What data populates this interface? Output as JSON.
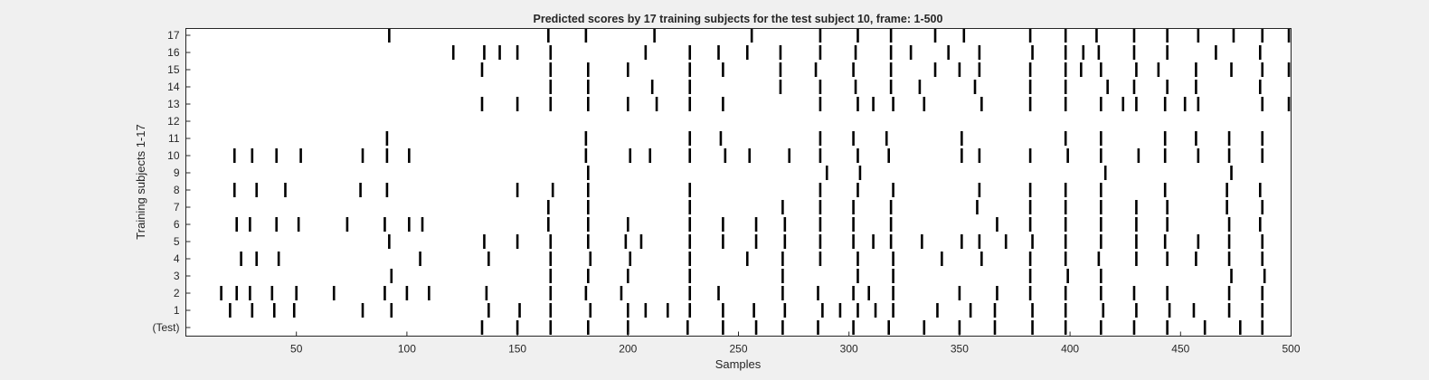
{
  "chart_data": {
    "type": "event-raster",
    "title": "Predicted scores by 17 training subjects for the test subject 10, frame: 1-500",
    "xlabel": "Samples",
    "ylabel": "Training subjects 1-17",
    "xlim": [
      0,
      500
    ],
    "xticks": [
      50,
      100,
      150,
      200,
      250,
      300,
      350,
      400,
      450,
      500
    ],
    "rows": [
      "(Test)",
      "1",
      "2",
      "3",
      "4",
      "5",
      "6",
      "7",
      "8",
      "9",
      "10",
      "11",
      "12",
      "13",
      "14",
      "15",
      "16",
      "17"
    ],
    "grid": false,
    "line_color": "#000000",
    "events": [
      {
        "row": "(Test)",
        "samples": [
          134,
          150,
          165,
          182,
          200,
          227,
          243,
          258,
          270,
          286,
          302,
          318,
          334,
          350,
          366,
          383,
          398,
          414,
          429,
          444,
          461,
          477,
          487
        ]
      },
      {
        "row": "1",
        "samples": [
          20,
          30,
          40,
          49,
          80,
          93,
          137,
          151,
          165,
          183,
          200,
          208,
          218,
          228,
          243,
          257,
          271,
          288,
          296,
          304,
          312,
          320,
          340,
          355,
          366,
          383,
          398,
          415,
          430,
          445,
          456,
          472,
          487
        ]
      },
      {
        "row": "2",
        "samples": [
          16,
          23,
          29,
          39,
          50,
          67,
          90,
          100,
          110,
          136,
          165,
          181,
          197,
          228,
          241,
          270,
          286,
          302,
          309,
          320,
          350,
          367,
          382,
          398,
          414,
          429,
          444,
          472,
          487
        ]
      },
      {
        "row": "3",
        "samples": [
          93,
          165,
          182,
          200,
          228,
          270,
          304,
          320,
          382,
          399,
          414,
          473,
          488
        ]
      },
      {
        "row": "4",
        "samples": [
          25,
          32,
          42,
          106,
          137,
          165,
          183,
          201,
          228,
          254,
          270,
          287,
          304,
          320,
          342,
          360,
          382,
          398,
          413,
          430,
          444,
          457,
          472,
          487
        ]
      },
      {
        "row": "5",
        "samples": [
          92,
          135,
          150,
          165,
          182,
          199,
          206,
          228,
          243,
          258,
          271,
          287,
          302,
          311,
          319,
          333,
          351,
          359,
          371,
          383,
          398,
          414,
          430,
          443,
          458,
          472,
          487
        ]
      },
      {
        "row": "6",
        "samples": [
          23,
          29,
          41,
          51,
          73,
          90,
          101,
          107,
          164,
          182,
          200,
          228,
          243,
          258,
          271,
          287,
          302,
          319,
          367,
          382,
          398,
          414,
          430,
          444,
          472,
          486
        ]
      },
      {
        "row": "7",
        "samples": [
          164,
          182,
          228,
          270,
          287,
          302,
          319,
          358,
          382,
          398,
          414,
          430,
          444,
          471,
          487
        ]
      },
      {
        "row": "8",
        "samples": [
          22,
          32,
          45,
          79,
          91,
          150,
          166,
          182,
          228,
          287,
          304,
          320,
          359,
          382,
          398,
          414,
          443,
          471,
          486
        ]
      },
      {
        "row": "9",
        "samples": [
          182,
          290,
          305,
          416,
          473
        ]
      },
      {
        "row": "10",
        "samples": [
          22,
          30,
          41,
          52,
          80,
          91,
          101,
          181,
          201,
          210,
          228,
          244,
          255,
          273,
          287,
          304,
          318,
          351,
          359,
          382,
          399,
          414,
          431,
          443,
          458,
          472,
          487
        ]
      },
      {
        "row": "11",
        "samples": [
          91,
          181,
          228,
          242,
          287,
          302,
          317,
          351,
          398,
          414,
          443,
          457,
          472,
          487
        ]
      },
      {
        "row": "12",
        "samples": []
      },
      {
        "row": "13",
        "samples": [
          134,
          150,
          165,
          182,
          200,
          213,
          228,
          243,
          287,
          304,
          311,
          320,
          334,
          360,
          382,
          398,
          414,
          424,
          430,
          443,
          452,
          458,
          487,
          499
        ]
      },
      {
        "row": "14",
        "samples": [
          165,
          182,
          211,
          228,
          269,
          287,
          303,
          319,
          332,
          357,
          382,
          398,
          417,
          429,
          444,
          457,
          486
        ]
      },
      {
        "row": "15",
        "samples": [
          134,
          165,
          182,
          200,
          228,
          243,
          269,
          285,
          302,
          319,
          339,
          350,
          359,
          382,
          398,
          405,
          414,
          430,
          440,
          457,
          473,
          487,
          499
        ]
      },
      {
        "row": "16",
        "samples": [
          121,
          135,
          142,
          150,
          165,
          208,
          228,
          241,
          254,
          269,
          287,
          303,
          319,
          328,
          345,
          359,
          383,
          398,
          406,
          413,
          429,
          444,
          466,
          486
        ]
      },
      {
        "row": "17",
        "samples": [
          92,
          164,
          181,
          212,
          256,
          287,
          304,
          319,
          339,
          352,
          382,
          398,
          412,
          429,
          444,
          458,
          474,
          487,
          499
        ]
      }
    ]
  }
}
